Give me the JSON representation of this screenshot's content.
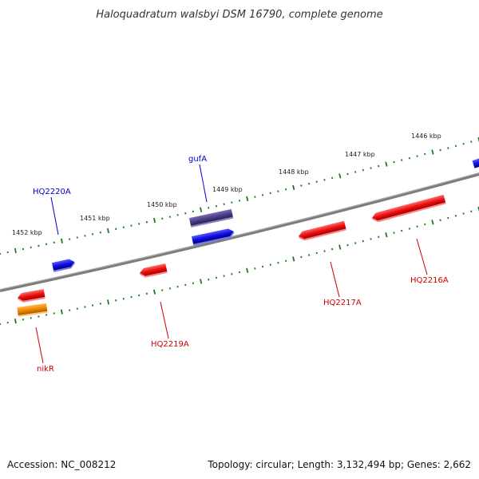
{
  "title": "Haloquadratum walsbyi DSM 16790, complete genome",
  "footer": {
    "accession": "Accession: NC_008212",
    "summary": "Topology: circular; Length: 3,132,494 bp; Genes: 2,662"
  },
  "ruler_labels": [
    "1452 kbp",
    "1451 kbp",
    "1450 kbp",
    "1449 kbp",
    "1448 kbp",
    "1447 kbp",
    "1446 kbp"
  ],
  "colors": {
    "backbone": "#888888",
    "tick": "#1f7a1f",
    "label_blue": "#0000cc",
    "label_red": "#cc0000",
    "blue_gene": "#1111dd",
    "red_gene": "#ee1111",
    "purple_gene": "#4b3f86",
    "orange_gene": "#ee8800"
  },
  "gene_labels": {
    "HQ2220A": "HQ2220A",
    "gufA": "gufA",
    "HQ2219A": "HQ2219A",
    "HQ2217A": "HQ2217A",
    "HQ2216A": "HQ2216A",
    "nikR": "nikR"
  }
}
